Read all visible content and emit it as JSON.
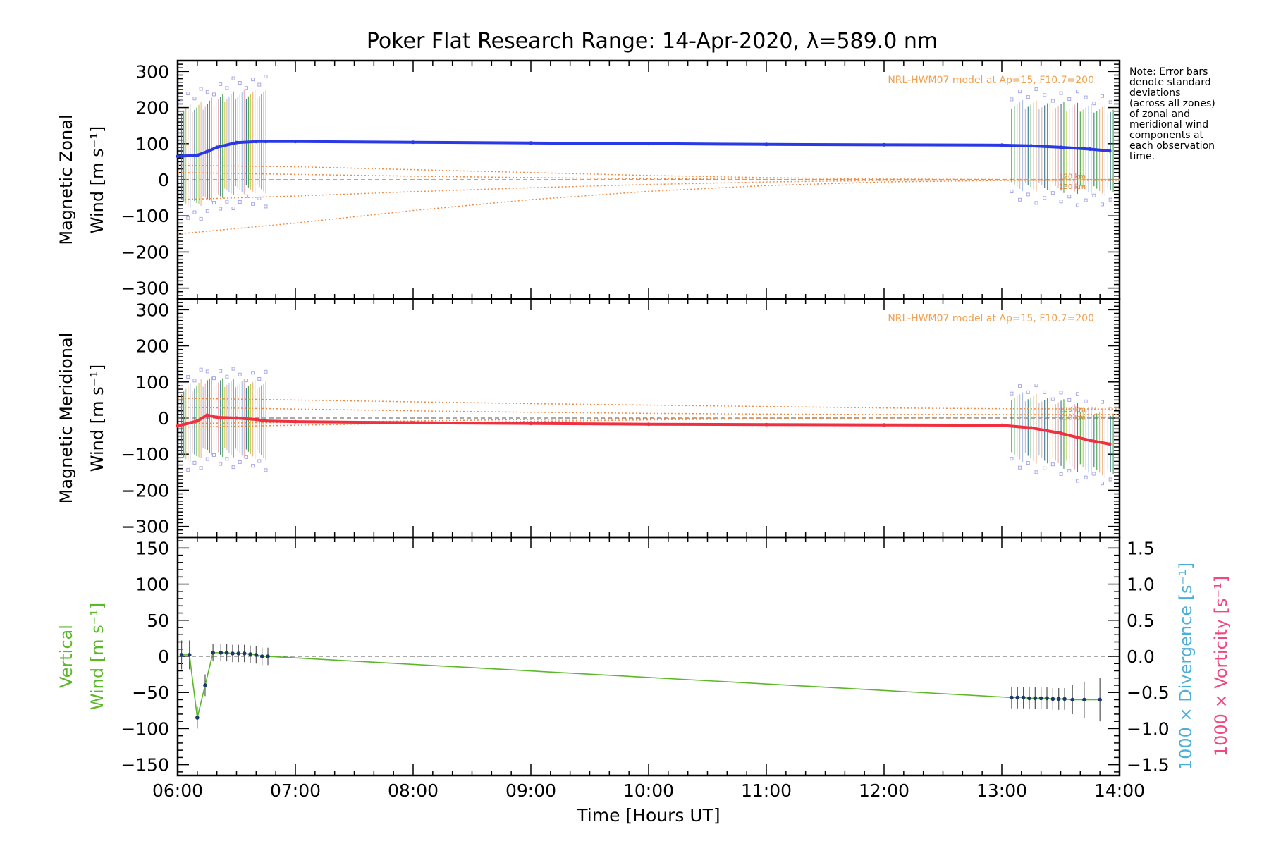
{
  "chart_data": [
    {
      "type": "scatter",
      "title": "Poker Flat Research Range: 14-Apr-2020, λ=589.0 nm",
      "ylabel": [
        "Magnetic Zonal",
        "Wind [m s⁻¹]"
      ],
      "ylim": [
        -330,
        330
      ],
      "yticks": [
        300,
        200,
        100,
        0,
        -100,
        -200,
        -300
      ],
      "model_label": "NRL-HWM07 model at Ap=15, F10.7=200",
      "altitude_labels": [
        "120 km",
        "130 km"
      ],
      "series_color": "#2a38e6",
      "mean_wind": {
        "x": [
          "06:00",
          "06:10",
          "06:15",
          "06:20",
          "06:30",
          "06:40",
          "06:45",
          "07:00",
          "08:00",
          "09:00",
          "10:00",
          "11:00",
          "12:00",
          "13:00",
          "13:15",
          "13:30",
          "13:45",
          "13:55"
        ],
        "y": [
          65,
          68,
          78,
          90,
          103,
          106,
          106,
          106,
          104,
          102,
          100,
          98,
          97,
          96,
          94,
          90,
          85,
          80
        ]
      },
      "model_curves": [
        {
          "x": [
            "06:00",
            "07:00",
            "08:00",
            "09:00",
            "10:00",
            "11:00",
            "12:00",
            "13:00",
            "14:00"
          ],
          "y": [
            40,
            36,
            28,
            20,
            12,
            6,
            2,
            1,
            0
          ]
        },
        {
          "x": [
            "06:00",
            "07:00",
            "08:00",
            "09:00",
            "10:00",
            "11:00",
            "12:00",
            "13:00",
            "14:00"
          ],
          "y": [
            20,
            15,
            10,
            6,
            3,
            1,
            0,
            -1,
            -2
          ]
        },
        {
          "x": [
            "06:00",
            "07:00",
            "08:00",
            "09:00",
            "10:00",
            "11:00",
            "12:00",
            "13:00",
            "14:00"
          ],
          "y": [
            -55,
            -45,
            -33,
            -22,
            -13,
            -6,
            -2,
            0,
            1
          ]
        },
        {
          "x": [
            "06:00",
            "07:00",
            "08:00",
            "09:00",
            "10:00",
            "11:00",
            "12:00",
            "13:00",
            "14:00"
          ],
          "y": [
            -150,
            -120,
            -85,
            -55,
            -32,
            -16,
            -6,
            -2,
            0
          ]
        }
      ]
    },
    {
      "type": "scatter",
      "ylabel": [
        "Magnetic Meridional",
        "Wind [m s⁻¹]"
      ],
      "ylim": [
        -330,
        330
      ],
      "yticks": [
        300,
        200,
        100,
        0,
        -100,
        -200,
        -300
      ],
      "model_label": "NRL-HWM07 model at Ap=15, F10.7=200",
      "altitude_labels": [
        "120 km",
        "130 km"
      ],
      "series_color": "#f03040",
      "mean_wind": {
        "x": [
          "06:00",
          "06:10",
          "06:15",
          "06:20",
          "06:30",
          "06:40",
          "06:45",
          "07:00",
          "08:00",
          "09:00",
          "10:00",
          "11:00",
          "12:00",
          "13:00",
          "13:15",
          "13:30",
          "13:45",
          "13:55"
        ],
        "y": [
          -22,
          -8,
          8,
          2,
          0,
          -4,
          -8,
          -10,
          -13,
          -15,
          -17,
          -18,
          -19,
          -20,
          -27,
          -42,
          -62,
          -72
        ]
      },
      "model_curves": [
        {
          "x": [
            "06:00",
            "07:00",
            "08:00",
            "09:00",
            "10:00",
            "11:00",
            "12:00",
            "13:00",
            "14:00"
          ],
          "y": [
            55,
            50,
            45,
            40,
            36,
            32,
            28,
            26,
            25
          ]
        },
        {
          "x": [
            "06:00",
            "07:00",
            "08:00",
            "09:00",
            "10:00",
            "11:00",
            "12:00",
            "13:00",
            "14:00"
          ],
          "y": [
            30,
            25,
            20,
            16,
            13,
            11,
            10,
            10,
            10
          ]
        },
        {
          "x": [
            "06:00",
            "07:00",
            "08:00",
            "09:00",
            "10:00",
            "11:00",
            "12:00",
            "13:00",
            "14:00"
          ],
          "y": [
            -15,
            -12,
            -8,
            -4,
            -2,
            0,
            1,
            2,
            3
          ]
        },
        {
          "x": [
            "06:00",
            "07:00",
            "08:00",
            "09:00",
            "10:00",
            "11:00",
            "12:00",
            "13:00",
            "14:00"
          ],
          "y": [
            -25,
            -20,
            -14,
            -9,
            -5,
            -2,
            0,
            1,
            2
          ]
        }
      ]
    },
    {
      "type": "line",
      "ylabel": [
        "Vertical",
        "Wind [m s⁻¹]"
      ],
      "ylim": [
        -165,
        165
      ],
      "yticks": [
        150,
        100,
        50,
        0,
        -50,
        -100,
        -150
      ],
      "y2label_divergence": "1000 × Divergence [s⁻¹]",
      "y2label_vorticity": "1000 × Vorticity [s⁻¹]",
      "y2ticks": [
        "1.5",
        "1.0",
        "0.5",
        "0.0",
        "−0.5",
        "−1.0",
        "−1.5"
      ],
      "xlabel": "Time [Hours UT]",
      "xticks": [
        "06:00",
        "07:00",
        "08:00",
        "09:00",
        "10:00",
        "11:00",
        "12:00",
        "13:00",
        "14:00"
      ],
      "xlim": [
        "06:00",
        "14:00"
      ],
      "line_color": "#5cb82a",
      "series": {
        "x": [
          "06:02",
          "06:06",
          "06:10",
          "06:14",
          "06:18",
          "06:22",
          "06:25",
          "06:28",
          "06:31",
          "06:34",
          "06:37",
          "06:40",
          "06:43",
          "06:46",
          "13:05",
          "13:08",
          "13:11",
          "13:14",
          "13:17",
          "13:20",
          "13:23",
          "13:26",
          "13:29",
          "13:32",
          "13:36",
          "13:42",
          "13:50"
        ],
        "y": [
          2,
          2,
          -85,
          -40,
          5,
          5,
          5,
          4,
          4,
          4,
          3,
          2,
          0,
          0,
          -57,
          -57,
          -57,
          -58,
          -58,
          -58,
          -58,
          -59,
          -59,
          -59,
          -60,
          -60,
          -60
        ]
      },
      "error": [
        20,
        20,
        15,
        15,
        12,
        12,
        12,
        12,
        12,
        12,
        12,
        12,
        12,
        12,
        15,
        15,
        15,
        15,
        15,
        15,
        15,
        15,
        15,
        15,
        20,
        25,
        30
      ]
    }
  ],
  "note": {
    "lines": [
      "Note: Error bars",
      "denote standard",
      "deviations",
      "(across all zones)",
      "of zonal and",
      "meridional wind",
      "components at",
      "each observation",
      "time."
    ]
  }
}
